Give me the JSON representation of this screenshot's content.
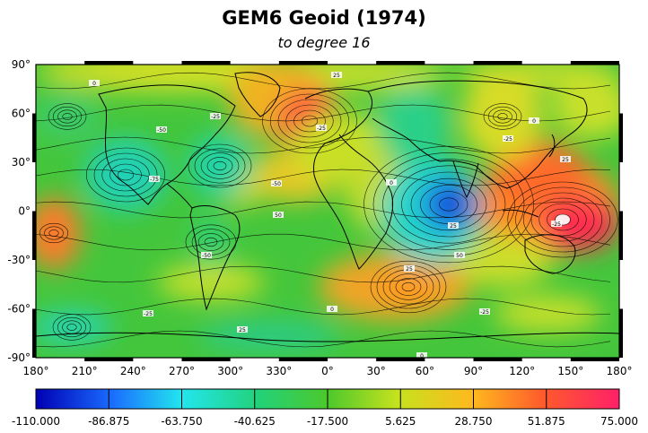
{
  "title": "GEM6 Geoid (1974)",
  "subtitle": "to degree 16",
  "map": {
    "projection": "equirectangular",
    "longitude_range": [
      180,
      540
    ],
    "latitude_range": [
      -90,
      90
    ],
    "lon_ticks": [
      "180°",
      "210°",
      "240°",
      "270°",
      "300°",
      "330°",
      "0°",
      "30°",
      "60°",
      "90°",
      "120°",
      "150°",
      "180°"
    ],
    "lat_ticks": [
      "90°",
      "60°",
      "30°",
      "0°",
      "-30°",
      "-60°",
      "-90°"
    ],
    "contour_labels": [
      "0",
      "25",
      "-25",
      "-50",
      "-75",
      "-50",
      "-25",
      "0",
      "25",
      "50",
      "25",
      "0",
      "-25",
      "0",
      "25",
      "-25",
      "0",
      "-25",
      "25",
      "50",
      "-50",
      "-25"
    ],
    "colors": {
      "low": "#0a1cd8",
      "mid_low": "#23e0e8",
      "mid": "#32c43c",
      "mid_high": "#c8e020",
      "high_orange": "#ff9a20",
      "max": "#ff1840"
    }
  },
  "colorbar": {
    "min": -110.0,
    "max": 75.0,
    "labels": [
      "-110.000",
      "-86.875",
      "-63.750",
      "-40.625",
      "-17.500",
      "5.625",
      "28.750",
      "51.875",
      "75.000"
    ],
    "colors": [
      "#0000c8",
      "#1a5cff",
      "#20e0e8",
      "#28d060",
      "#58d020",
      "#c8e020",
      "#ffb020",
      "#ff4040",
      "#ff2060"
    ]
  }
}
